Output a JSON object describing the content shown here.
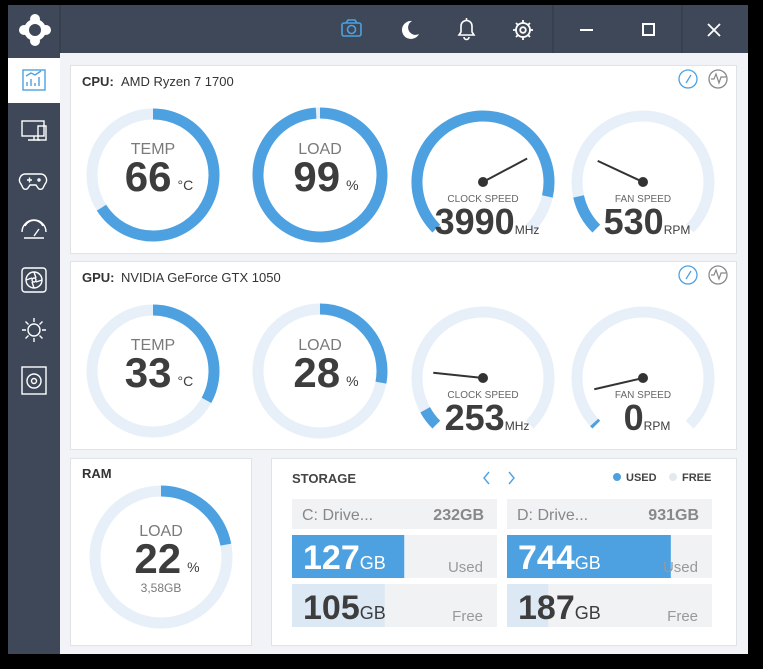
{
  "cpu": {
    "label": "CPU:",
    "name": "AMD Ryzen 7 1700",
    "temp": {
      "label": "TEMP",
      "value": 66,
      "unit": "°C"
    },
    "load": {
      "label": "LOAD",
      "value": 99,
      "unit": "%"
    },
    "clock_speed": {
      "label": "CLOCK SPEED",
      "value": 3990,
      "unit": "MHz"
    },
    "fan_speed": {
      "label": "FAN SPEED",
      "value": 530,
      "unit": "RPM"
    }
  },
  "gpu": {
    "label": "GPU:",
    "name": "NVIDIA GeForce GTX 1050",
    "temp": {
      "label": "TEMP",
      "value": 33,
      "unit": "°C"
    },
    "load": {
      "label": "LOAD",
      "value": 28,
      "unit": "%"
    },
    "clock_speed": {
      "label": "CLOCK SPEED",
      "value": 253,
      "unit": "MHz"
    },
    "fan_speed": {
      "label": "FAN SPEED",
      "value": 0,
      "unit": "RPM"
    }
  },
  "ram": {
    "label": "RAM",
    "load": {
      "label": "LOAD",
      "value": 22,
      "unit": "%",
      "detail": "3,58GB"
    }
  },
  "storage": {
    "title": "STORAGE",
    "legend": {
      "used": "USED",
      "free": "FREE"
    },
    "drives": [
      {
        "name": "C: Drive...",
        "total": 232,
        "total_unit": "GB",
        "used": 127,
        "used_unit": "GB",
        "used_label": "Used",
        "free": 105,
        "free_unit": "GB",
        "free_label": "Free"
      },
      {
        "name": "D: Drive...",
        "total": 931,
        "total_unit": "GB",
        "used": 744,
        "used_unit": "GB",
        "used_label": "Used",
        "free": 187,
        "free_unit": "GB",
        "free_label": "Free"
      }
    ]
  }
}
